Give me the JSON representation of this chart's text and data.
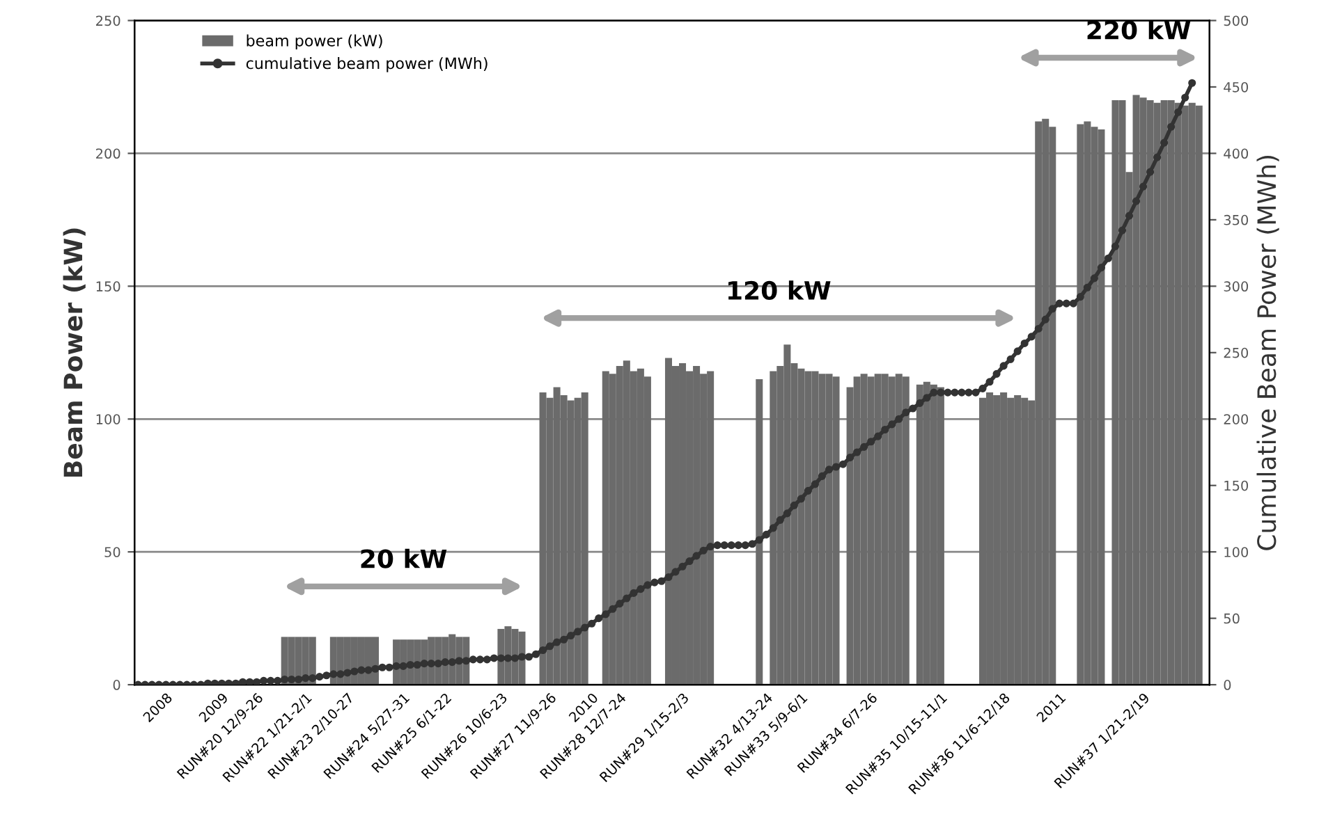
{
  "chart_data": {
    "type": "bar",
    "categories": [
      null,
      null,
      null,
      null,
      "2008",
      null,
      null,
      null,
      null,
      null,
      null,
      null,
      "2009",
      null,
      null,
      null,
      null,
      "RUN#20 12/9-26",
      null,
      null,
      null,
      null,
      null,
      null,
      "RUN#22 1/21-2/1",
      null,
      null,
      null,
      null,
      null,
      "RUN#23 2/10-27",
      null,
      null,
      null,
      null,
      null,
      null,
      null,
      "RUN#24 5/27-31",
      null,
      null,
      null,
      null,
      null,
      "RUN#25 6/1-22",
      null,
      null,
      null,
      null,
      null,
      null,
      null,
      "RUN#26 10/6-23",
      null,
      null,
      null,
      null,
      null,
      null,
      "RUN#27 11/9-26",
      null,
      null,
      null,
      null,
      null,
      "2010",
      null,
      null,
      null,
      "RUN#28 12/7-24",
      null,
      null,
      null,
      null,
      null,
      null,
      null,
      null,
      "RUN#29 1/15-2/3",
      null,
      null,
      null,
      null,
      null,
      null,
      null,
      null,
      null,
      null,
      null,
      "RUN#32 4/13-24",
      null,
      null,
      null,
      null,
      "RUN#33 5/9-6/1",
      null,
      null,
      null,
      null,
      null,
      null,
      null,
      null,
      null,
      "RUN#34 6/7-26",
      null,
      null,
      null,
      null,
      null,
      null,
      null,
      null,
      null,
      "RUN#35 10/15-11/1",
      null,
      null,
      null,
      null,
      null,
      null,
      null,
      null,
      "RUN#36 11/6-12/18",
      null,
      null,
      null,
      null,
      null,
      null,
      null,
      "2011",
      null,
      null,
      null,
      null,
      null,
      null,
      null,
      null,
      null,
      null,
      null,
      "RUN#37 1/21-2/19",
      null,
      null,
      null,
      null,
      null,
      null,
      null,
      null,
      null
    ],
    "series": [
      {
        "name": "beam power (kW)",
        "color": "#6b6b6b",
        "values": [
          0,
          0,
          0,
          0,
          0,
          0,
          0,
          0,
          0,
          0,
          0,
          0,
          0,
          0,
          0,
          0,
          0,
          0,
          0,
          0,
          0,
          18,
          18,
          18,
          18,
          18,
          0,
          0,
          18,
          18,
          18,
          18,
          18,
          18,
          18,
          0,
          0,
          17,
          17,
          17,
          17,
          17,
          18,
          18,
          18,
          19,
          18,
          18,
          0,
          0,
          0,
          0,
          21,
          22,
          21,
          20,
          0,
          0,
          110,
          108,
          112,
          109,
          107,
          108,
          110,
          0,
          0,
          118,
          117,
          120,
          122,
          118,
          119,
          116,
          0,
          0,
          123,
          120,
          121,
          118,
          120,
          117,
          118,
          0,
          0,
          0,
          0,
          0,
          0,
          115,
          0,
          118,
          120,
          128,
          121,
          119,
          118,
          118,
          117,
          117,
          116,
          0,
          112,
          116,
          117,
          116,
          117,
          117,
          116,
          117,
          116,
          0,
          113,
          114,
          113,
          112,
          0,
          0,
          0,
          0,
          0,
          108,
          110,
          109,
          110,
          108,
          109,
          108,
          107,
          212,
          213,
          210,
          0,
          0,
          0,
          211,
          212,
          210,
          209,
          0,
          220,
          220,
          193,
          222,
          221,
          220,
          219,
          220,
          220,
          219,
          218,
          219,
          218,
          0
        ]
      },
      {
        "name": "cumulative beam power (MWh)",
        "type": "line",
        "axis": "y2",
        "color": "#333333",
        "marker": "circle",
        "values": [
          0,
          0,
          0,
          0,
          0,
          0,
          0,
          0,
          0,
          0,
          1,
          1,
          1,
          1,
          1,
          2,
          2,
          2,
          3,
          3,
          3,
          4,
          4,
          4,
          5,
          5,
          6,
          7,
          8,
          8,
          9,
          10,
          11,
          11,
          12,
          13,
          13,
          14,
          14,
          15,
          15,
          16,
          16,
          16,
          17,
          17,
          18,
          18,
          19,
          19,
          19,
          20,
          20,
          20,
          20,
          21,
          21,
          23,
          26,
          29,
          32,
          34,
          37,
          40,
          43,
          46,
          50,
          53,
          57,
          61,
          65,
          69,
          72,
          75,
          77,
          78,
          81,
          85,
          89,
          93,
          97,
          101,
          104,
          105,
          105,
          105,
          105,
          105,
          106,
          109,
          113,
          118,
          124,
          129,
          135,
          140,
          146,
          151,
          157,
          162,
          164,
          166,
          171,
          175,
          179,
          183,
          187,
          192,
          196,
          200,
          205,
          208,
          212,
          216,
          220,
          220,
          220,
          220,
          220,
          220,
          220,
          223,
          228,
          234,
          240,
          245,
          251,
          257,
          262,
          268,
          275,
          283,
          287,
          287,
          287,
          292,
          299,
          306,
          314,
          321,
          330,
          342,
          353,
          364,
          375,
          386,
          397,
          408,
          420,
          431,
          442,
          453,
          null,
          null
        ]
      }
    ],
    "ylabel": "Beam Power (kW)",
    "y2label": "Cumulative Beam Power (MWh)",
    "ylim": [
      0,
      250
    ],
    "yticks": [
      0,
      50,
      100,
      150,
      200,
      250
    ],
    "y2lim": [
      0,
      500
    ],
    "y2ticks": [
      0,
      50,
      100,
      150,
      200,
      250,
      300,
      350,
      400,
      450,
      500
    ],
    "grid": "y",
    "legend": "top left",
    "annotations": [
      "20 kW",
      "120 kW",
      "220 kW"
    ]
  }
}
